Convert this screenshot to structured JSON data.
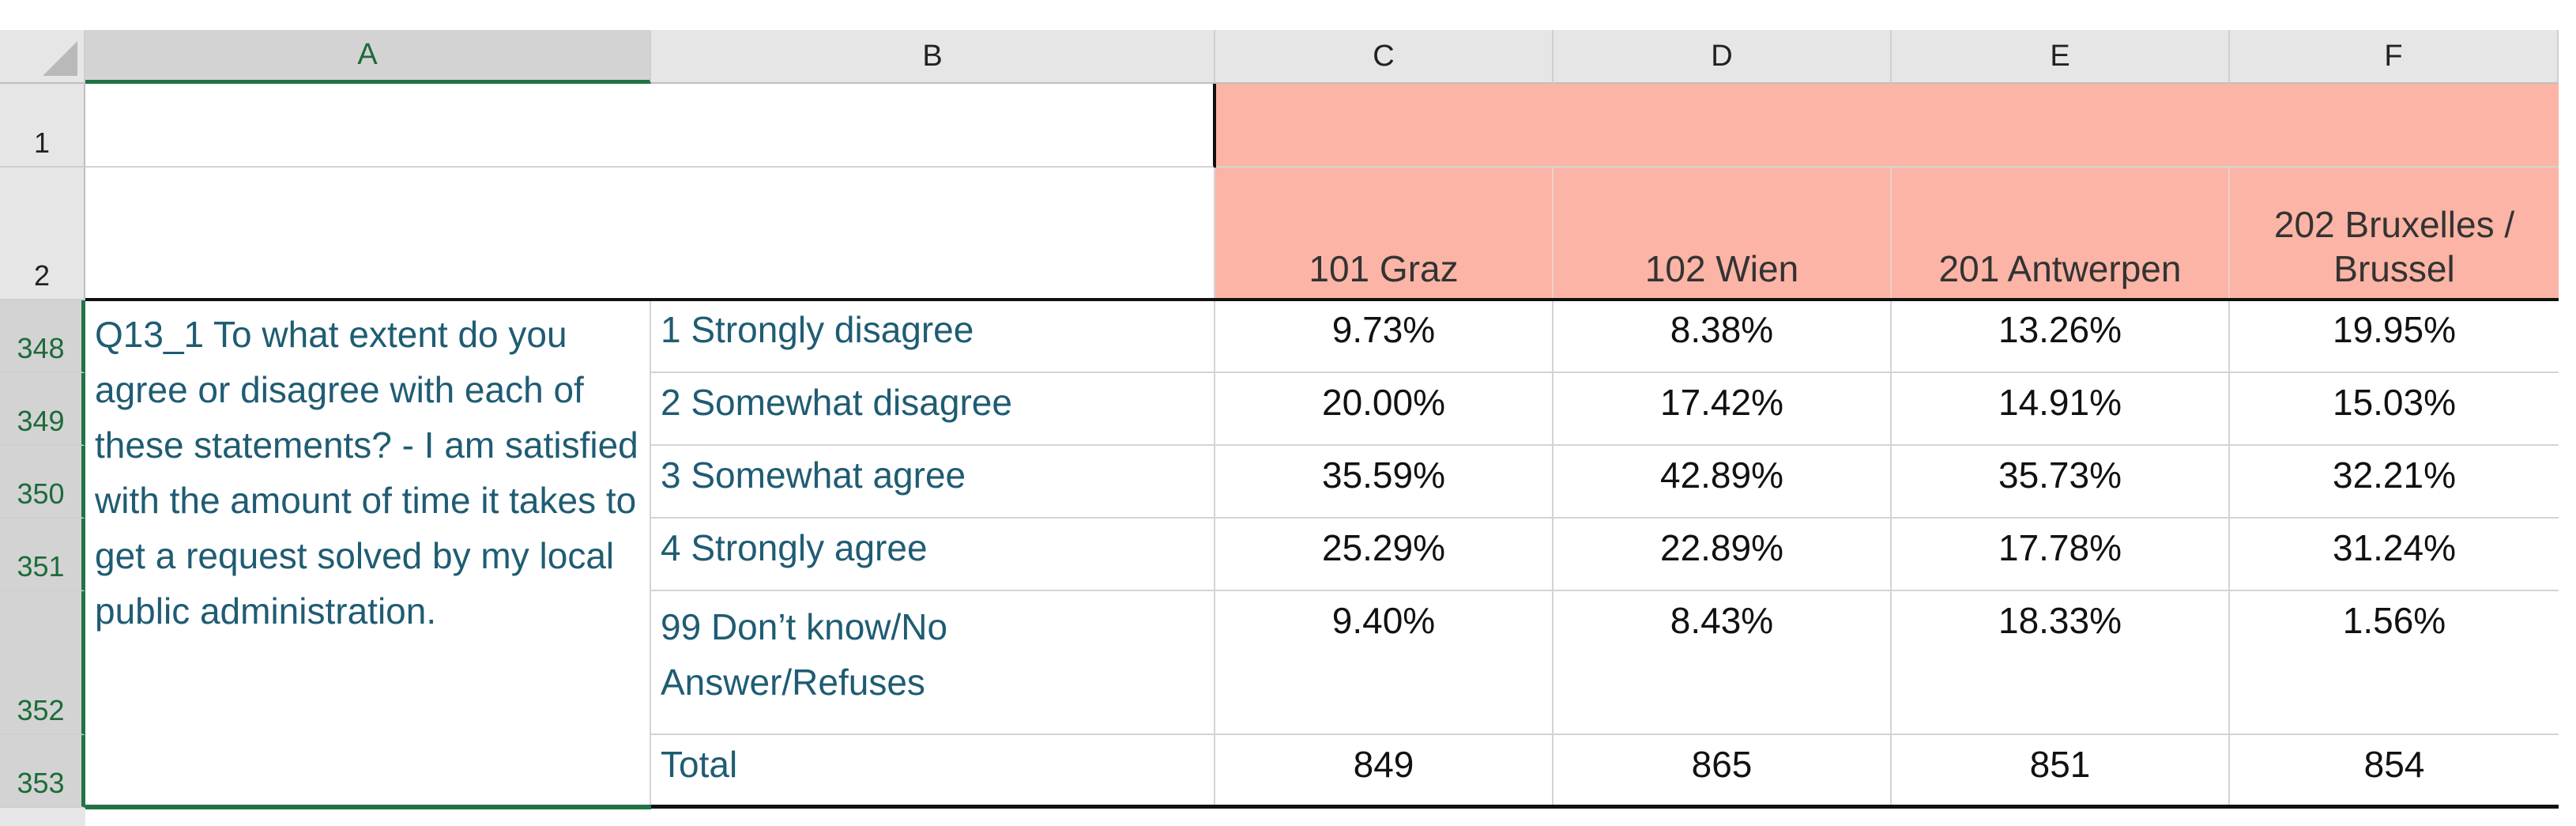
{
  "columns": [
    "A",
    "B",
    "C",
    "D",
    "E",
    "F"
  ],
  "rows": [
    "1",
    "2",
    "348",
    "349",
    "350",
    "351",
    "352",
    "353"
  ],
  "headers": {
    "c": "101 Graz",
    "d": "102 Wien",
    "e": "201 Antwerpen",
    "f_line1": "202 Bruxelles /",
    "f_line2": "Brussel"
  },
  "question": "Q13_1 To what extent do you agree or disagree with each of these statements? - I am satisfied with the amount of time it takes to get a request solved by my local public administration.",
  "table": [
    {
      "label": "1 Strongly disagree",
      "c": "9.73%",
      "d": "8.38%",
      "e": "13.26%",
      "f": "19.95%"
    },
    {
      "label": "2 Somewhat disagree",
      "c": "20.00%",
      "d": "17.42%",
      "e": "14.91%",
      "f": "15.03%"
    },
    {
      "label": "3 Somewhat agree",
      "c": "35.59%",
      "d": "42.89%",
      "e": "35.73%",
      "f": "32.21%"
    },
    {
      "label": "4 Strongly agree",
      "c": "25.29%",
      "d": "22.89%",
      "e": "17.78%",
      "f": "31.24%"
    },
    {
      "label_line1": "99 Don’t know/No",
      "label_line2": "Answer/Refuses",
      "c": "9.40%",
      "d": "8.43%",
      "e": "18.33%",
      "f": "1.56%"
    },
    {
      "label": "Total",
      "c": "849",
      "d": "865",
      "e": "851",
      "f": "854"
    }
  ],
  "colors": {
    "header_fill": "#fbb4a5",
    "label_text": "#1f5c73",
    "selection": "#217346"
  }
}
